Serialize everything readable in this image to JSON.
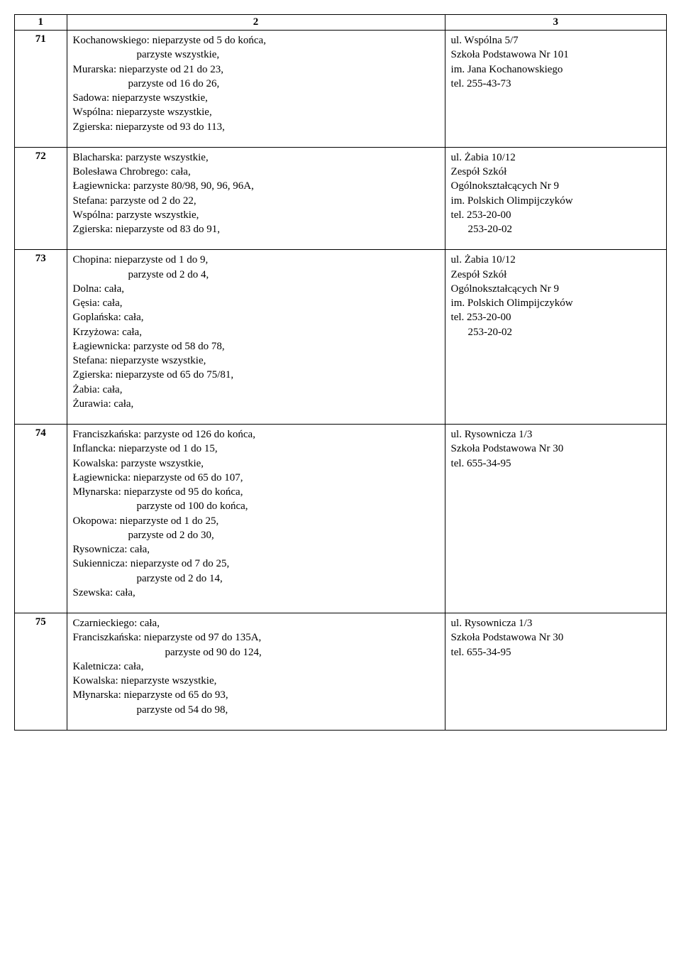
{
  "header": {
    "c1": "1",
    "c2": "2",
    "c3": "3"
  },
  "rows": [
    {
      "num": "71",
      "col2_lines": [
        {
          "t": "Kochanowskiego: nieparzyste od 5 do końca,",
          "cls": ""
        },
        {
          "t": "parzyste wszystkie,",
          "cls": "indent1"
        },
        {
          "t": "Murarska: nieparzyste od 21 do 23,",
          "cls": ""
        },
        {
          "t": "parzyste od 16 do 26,",
          "cls": "indent2"
        },
        {
          "t": "Sadowa: nieparzyste wszystkie,",
          "cls": ""
        },
        {
          "t": "Wspólna: nieparzyste wszystkie,",
          "cls": ""
        },
        {
          "t": "Zgierska: nieparzyste od 93 do 113,",
          "cls": ""
        }
      ],
      "col3_lines": [
        {
          "t": "ul. Wspólna 5/7",
          "cls": ""
        },
        {
          "t": "Szkoła Podstawowa Nr 101",
          "cls": ""
        },
        {
          "t": "im. Jana Kochanowskiego",
          "cls": ""
        },
        {
          "t": "tel. 255-43-73",
          "cls": ""
        }
      ]
    },
    {
      "num": "72",
      "col2_lines": [
        {
          "t": "Blacharska: parzyste wszystkie,",
          "cls": ""
        },
        {
          "t": "Bolesława Chrobrego: cała,",
          "cls": ""
        },
        {
          "t": "Łagiewnicka: parzyste 80/98, 90, 96, 96A,",
          "cls": ""
        },
        {
          "t": "Stefana: parzyste od 2 do 22,",
          "cls": ""
        },
        {
          "t": "Wspólna: parzyste wszystkie,",
          "cls": ""
        },
        {
          "t": "Zgierska: nieparzyste od 83 do 91,",
          "cls": ""
        }
      ],
      "col3_lines": [
        {
          "t": "ul. Żabia 10/12",
          "cls": ""
        },
        {
          "t": "Zespół Szkół",
          "cls": ""
        },
        {
          "t": "Ogólnokształcących Nr 9",
          "cls": ""
        },
        {
          "t": "im. Polskich Olimpijczyków",
          "cls": ""
        },
        {
          "t": "tel. 253-20-00",
          "cls": ""
        },
        {
          "t": "253-20-02",
          "cls": "indent-phone"
        }
      ]
    },
    {
      "num": "73",
      "col2_lines": [
        {
          "t": "Chopina: nieparzyste od 1 do 9,",
          "cls": ""
        },
        {
          "t": "parzyste od 2 do 4,",
          "cls": "indent2"
        },
        {
          "t": "Dolna: cała,",
          "cls": ""
        },
        {
          "t": "Gęsia: cała,",
          "cls": ""
        },
        {
          "t": "Goplańska: cała,",
          "cls": ""
        },
        {
          "t": "Krzyżowa: cała,",
          "cls": ""
        },
        {
          "t": "Łagiewnicka: parzyste od 58 do 78,",
          "cls": ""
        },
        {
          "t": "Stefana: nieparzyste wszystkie,",
          "cls": ""
        },
        {
          "t": "Zgierska: nieparzyste od 65 do 75/81,",
          "cls": ""
        },
        {
          "t": "Żabia: cała,",
          "cls": ""
        },
        {
          "t": "Żurawia: cała,",
          "cls": ""
        }
      ],
      "col3_lines": [
        {
          "t": "ul. Żabia 10/12",
          "cls": ""
        },
        {
          "t": "Zespół Szkół",
          "cls": ""
        },
        {
          "t": "Ogólnokształcących Nr 9",
          "cls": ""
        },
        {
          "t": "im. Polskich Olimpijczyków",
          "cls": ""
        },
        {
          "t": "tel. 253-20-00",
          "cls": ""
        },
        {
          "t": "253-20-02",
          "cls": "indent-phone"
        }
      ]
    },
    {
      "num": "74",
      "col2_lines": [
        {
          "t": "Franciszkańska: parzyste od 126 do końca,",
          "cls": ""
        },
        {
          "t": "Inflancka: nieparzyste od 1 do 15,",
          "cls": ""
        },
        {
          "t": "Kowalska: parzyste wszystkie,",
          "cls": ""
        },
        {
          "t": "Łagiewnicka: nieparzyste od 65 do 107,",
          "cls": ""
        },
        {
          "t": "Młynarska: nieparzyste od 95 do końca,",
          "cls": ""
        },
        {
          "t": "parzyste od 100 do końca,",
          "cls": "indent1"
        },
        {
          "t": "Okopowa: nieparzyste od 1 do 25,",
          "cls": ""
        },
        {
          "t": "parzyste od 2 do 30,",
          "cls": "indent2"
        },
        {
          "t": "Rysownicza: cała,",
          "cls": ""
        },
        {
          "t": "Sukiennicza: nieparzyste od 7 do 25,",
          "cls": ""
        },
        {
          "t": "parzyste od 2 do 14,",
          "cls": "indent1"
        },
        {
          "t": "Szewska: cała,",
          "cls": ""
        }
      ],
      "col3_lines": [
        {
          "t": "ul. Rysownicza 1/3",
          "cls": ""
        },
        {
          "t": "Szkoła Podstawowa Nr 30",
          "cls": ""
        },
        {
          "t": "tel. 655-34-95",
          "cls": ""
        }
      ]
    },
    {
      "num": "75",
      "col2_lines": [
        {
          "t": "Czarnieckiego: cała,",
          "cls": ""
        },
        {
          "t": "Franciszkańska: nieparzyste od 97 do 135A,",
          "cls": ""
        },
        {
          "t": "parzyste od 90 do 124,",
          "cls": "indent3"
        },
        {
          "t": "Kaletnicza: cała,",
          "cls": ""
        },
        {
          "t": "Kowalska: nieparzyste wszystkie,",
          "cls": ""
        },
        {
          "t": "Młynarska: nieparzyste od 65 do 93,",
          "cls": ""
        },
        {
          "t": "parzyste od 54 do 98,",
          "cls": "indent1"
        }
      ],
      "col3_lines": [
        {
          "t": "ul. Rysownicza 1/3",
          "cls": ""
        },
        {
          "t": "Szkoła Podstawowa Nr 30",
          "cls": ""
        },
        {
          "t": "tel. 655-34-95",
          "cls": ""
        }
      ]
    }
  ]
}
